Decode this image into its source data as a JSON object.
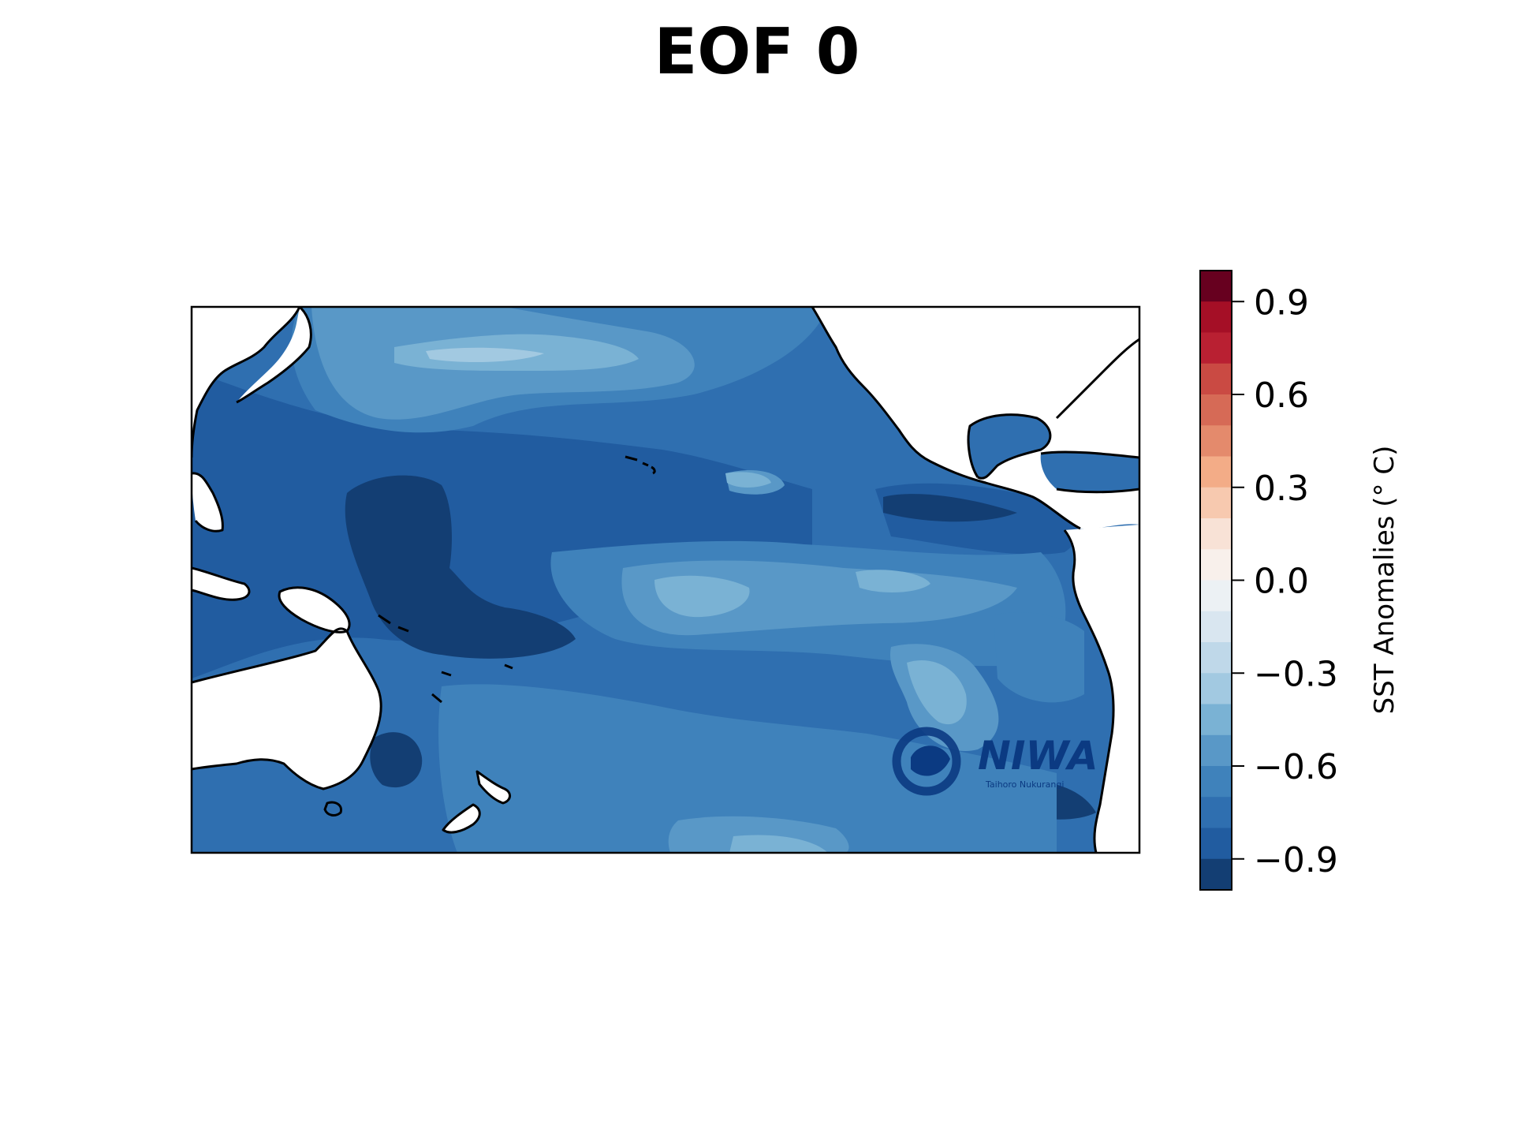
{
  "title": "EOF 0",
  "colorbar": {
    "label": "SST Anomalies (° C)",
    "range": [
      -1.0,
      1.0
    ],
    "ticks": [
      0.9,
      0.6,
      0.3,
      0.0,
      -0.3,
      -0.6,
      -0.9
    ],
    "tick_labels": [
      "0.9",
      "0.6",
      "0.3",
      "0.0",
      "−0.3",
      "−0.6",
      "−0.9"
    ],
    "levels_top_to_bottom": [
      "#67001f",
      "#a50f26",
      "#b92032",
      "#ca4a43",
      "#d66a56",
      "#e48a6c",
      "#f3ac87",
      "#f7c9af",
      "#f8e2d6",
      "#f8f0eb",
      "#ecf1f4",
      "#d9e6f0",
      "#bfd8e9",
      "#a2c9e1",
      "#7ab2d4",
      "#5998c7",
      "#3f82bb",
      "#2f6fb0",
      "#215ca0",
      "#133e73"
    ]
  },
  "map": {
    "region": "Pacific Ocean",
    "colors": {
      "ocean_base": "#2f6fb0",
      "dark_anomaly": "#133e73",
      "deep_anomaly": "#215ca0",
      "moderate_anomaly": "#3f82bb",
      "weak_anomaly": "#5998c7",
      "faint_anomaly": "#7ab2d4",
      "palest_anomaly": "#a2c9e1",
      "land": "#ffffff",
      "coastline": "#000000"
    }
  },
  "logo": {
    "name": "NIWA",
    "tagline": "Taihoro Nukurangi"
  }
}
